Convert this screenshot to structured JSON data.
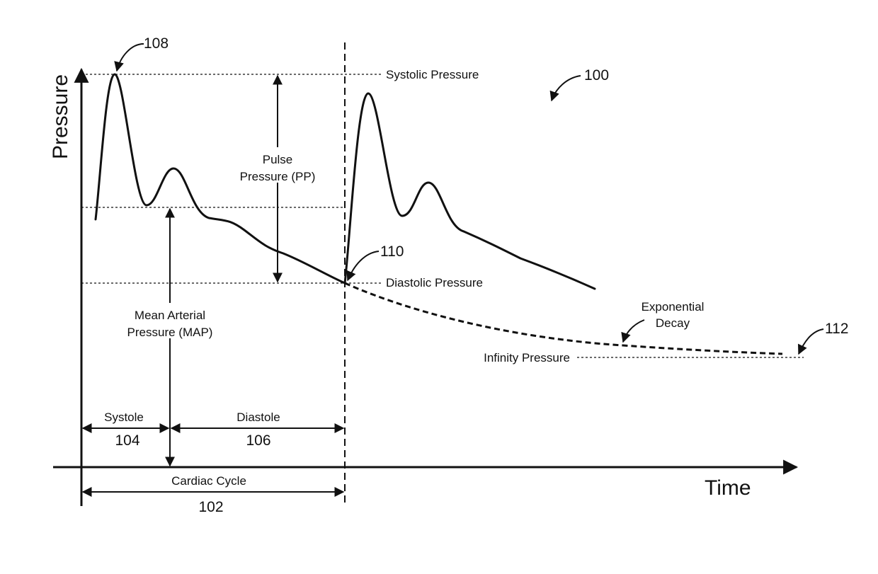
{
  "axes": {
    "y_label": "Pressure",
    "x_label": "Time"
  },
  "levels": {
    "systolic": "Systolic Pressure",
    "diastolic": "Diastolic Pressure",
    "infinity": "Infinity Pressure"
  },
  "annotations": {
    "pulse_pressure": [
      "Pulse",
      "Pressure (PP)"
    ],
    "map": [
      "Mean Arterial",
      "Pressure (MAP)"
    ],
    "exp_decay": [
      "Exponential",
      "Decay"
    ],
    "systole": "Systole",
    "diastole": "Diastole",
    "cardiac_cycle": "Cardiac Cycle"
  },
  "refs": {
    "figure": "100",
    "cardiac_cycle": "102",
    "systole": "104",
    "diastole": "106",
    "peak": "108",
    "notch": "110",
    "infinity": "112"
  }
}
